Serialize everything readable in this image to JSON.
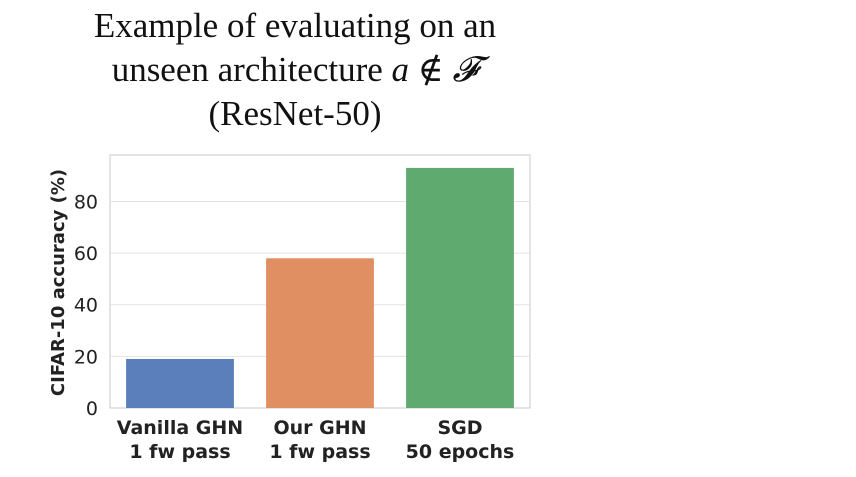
{
  "title": {
    "line1": "Example of evaluating on an",
    "line2_text": "unseen architecture ",
    "line2_var": "a",
    "line2_symbol": " ∉ ",
    "line2_set": "𝓕",
    "line3": "(ResNet-50)"
  },
  "colors": {
    "bars": [
      "#5b7fba",
      "#e08f62",
      "#5faa6e"
    ],
    "grid": "#e3e3e3",
    "axis": "#c8c8c8",
    "text": "#222222"
  },
  "chart_data": {
    "type": "bar",
    "categories": [
      [
        "Vanilla GHN",
        "1 fw pass"
      ],
      [
        "Our GHN",
        "1 fw pass"
      ],
      [
        "SGD",
        "50 epochs"
      ]
    ],
    "values": [
      19,
      58,
      93
    ],
    "ylabel": "CIFAR-10 accuracy (%)",
    "yticks": [
      0,
      20,
      40,
      60,
      80
    ],
    "ylim": [
      0,
      98
    ],
    "grid": true
  }
}
